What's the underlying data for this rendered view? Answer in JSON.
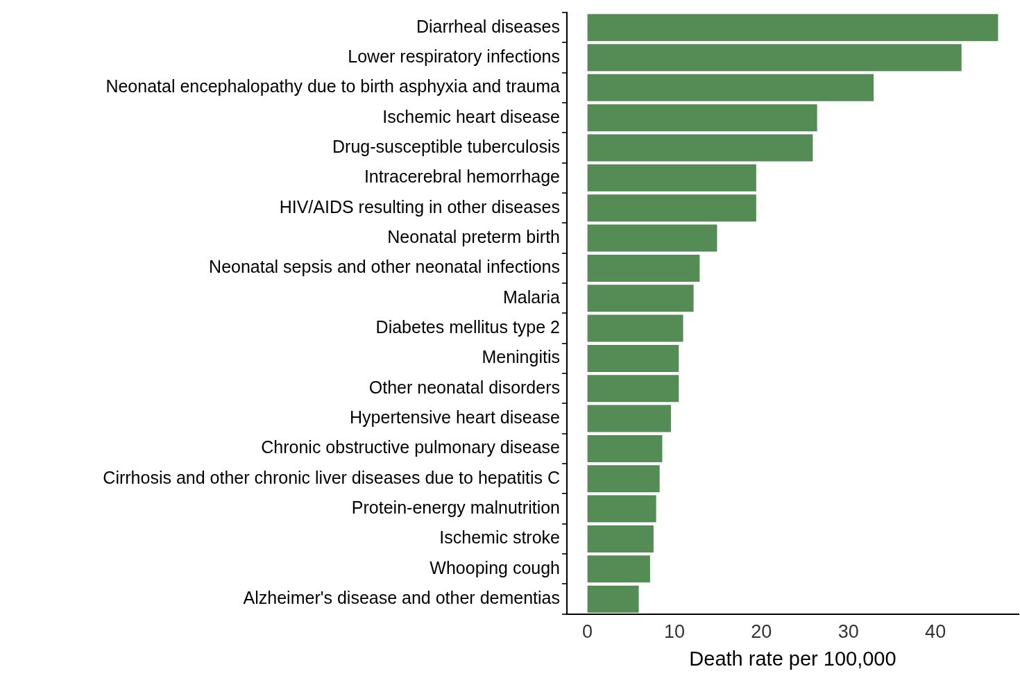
{
  "chart_data": {
    "type": "bar",
    "orientation": "horizontal",
    "xlabel": "Death rate per 100,000",
    "categories": [
      "Diarrheal diseases",
      "Lower respiratory infections",
      "Neonatal encephalopathy due to birth asphyxia and trauma",
      "Ischemic heart disease",
      "Drug-susceptible tuberculosis",
      "Intracerebral hemorrhage",
      "HIV/AIDS resulting in other diseases",
      "Neonatal preterm birth",
      "Neonatal sepsis and other neonatal infections",
      "Malaria",
      "Diabetes mellitus type 2",
      "Meningitis",
      "Other neonatal disorders",
      "Hypertensive heart disease",
      "Chronic obstructive pulmonary disease",
      "Cirrhosis and other chronic liver diseases due to hepatitis C",
      "Protein-energy malnutrition",
      "Ischemic stroke",
      "Whooping cough",
      "Alzheimer's disease and other dementias"
    ],
    "values": [
      47.2,
      43.0,
      32.9,
      26.4,
      25.9,
      19.4,
      19.4,
      14.9,
      12.9,
      12.2,
      11.0,
      10.5,
      10.5,
      9.6,
      8.6,
      8.3,
      7.9,
      7.6,
      7.2,
      5.9
    ],
    "color": "#558b55",
    "xlim": [
      -2.36,
      49.56
    ],
    "xticks": [
      0,
      10,
      20,
      30,
      40
    ],
    "grid": false,
    "legend": false
  }
}
